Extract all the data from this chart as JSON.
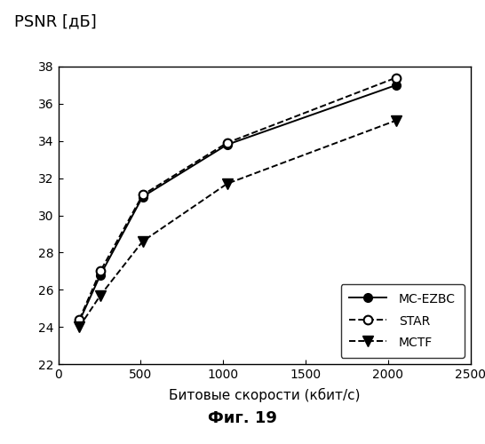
{
  "mc_ezbc_x": [
    128,
    256,
    512,
    1024,
    2048
  ],
  "mc_ezbc_y": [
    24.3,
    26.8,
    31.0,
    33.8,
    37.0
  ],
  "star_x": [
    128,
    256,
    512,
    1024,
    2048
  ],
  "star_y": [
    24.4,
    27.0,
    31.1,
    33.9,
    37.4
  ],
  "mctf_x": [
    128,
    256,
    512,
    1024,
    2048
  ],
  "mctf_y": [
    24.0,
    25.7,
    28.6,
    31.7,
    35.1
  ],
  "xlabel": "Битовые скорости (кбит/с)",
  "ylabel": "PSNR [дБ]",
  "fig_caption": "Фиг. 19",
  "xlim": [
    0,
    2500
  ],
  "ylim": [
    22,
    38
  ],
  "xticks": [
    0,
    500,
    1000,
    1500,
    2000,
    2500
  ],
  "yticks": [
    22,
    24,
    26,
    28,
    30,
    32,
    34,
    36,
    38
  ],
  "legend_labels": [
    "MC-EZBC",
    "STAR",
    "MCTF"
  ]
}
